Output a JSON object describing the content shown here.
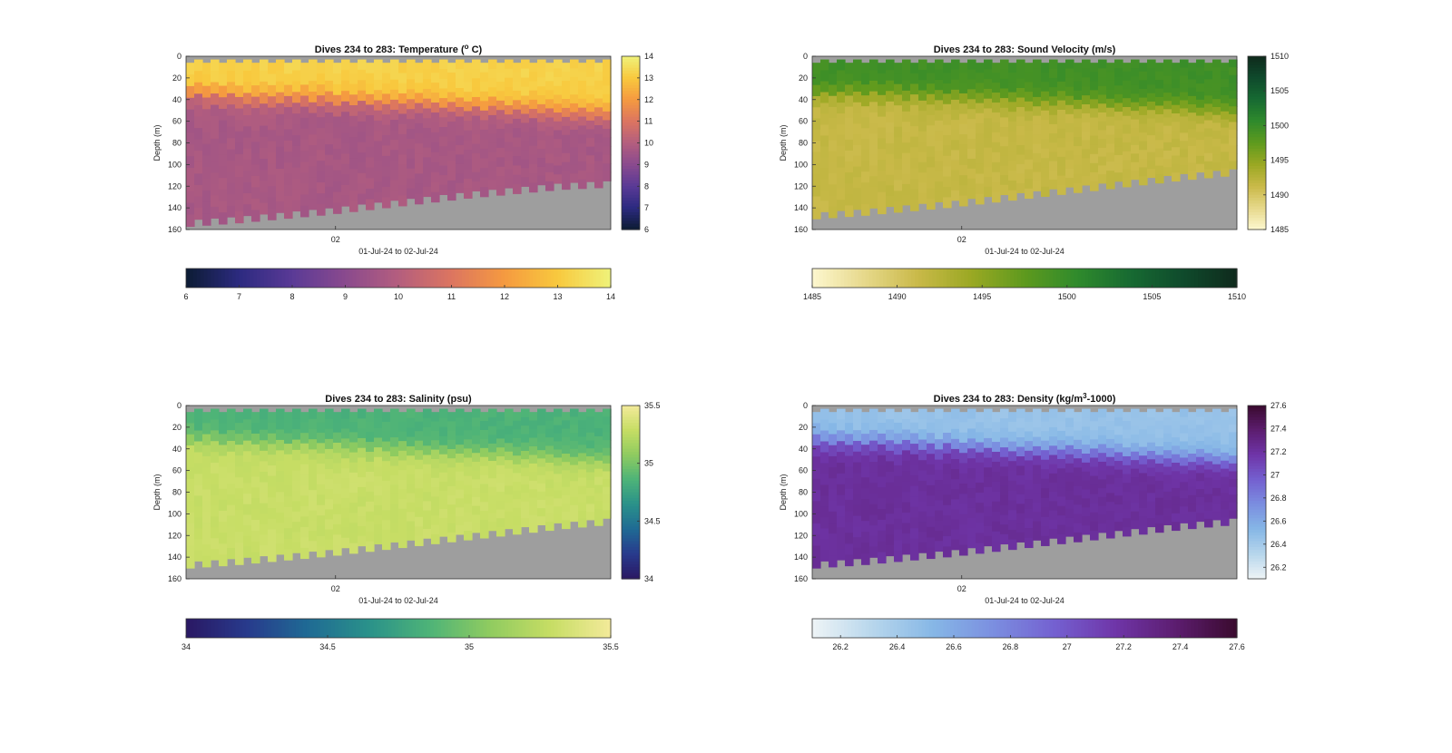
{
  "figure": {
    "background": "#ffffff",
    "nodata_color": "#9e9e9e"
  },
  "chart_data": [
    {
      "type": "heatmap",
      "id": "temperature",
      "title": "Dives 234 to 283: Temperature (° C)",
      "title_parts": [
        "Dives 234 to 283: Temperature (",
        "o",
        " C)"
      ],
      "ylabel": "Depth (m)",
      "xlabel": "01-Jul-24 to 02-Jul-24",
      "xticks": [
        "02"
      ],
      "ylim": [
        0,
        160
      ],
      "yticks": [
        0,
        20,
        40,
        60,
        80,
        100,
        120,
        140,
        160
      ],
      "colorbar_range": [
        6,
        14
      ],
      "colorbar_ticks_vertical": [
        "14",
        "13",
        "12",
        "11",
        "10",
        "9",
        "8",
        "7",
        "6"
      ],
      "colorbar_ticks_horizontal": [
        "6",
        "7",
        "8",
        "9",
        "10",
        "11",
        "12",
        "13",
        "14"
      ],
      "colormap": [
        "#0c1b33",
        "#2c2a80",
        "#5a3a96",
        "#8a4a8e",
        "#b45e7e",
        "#dc7560",
        "#f59a40",
        "#f8c93e",
        "#eff27a"
      ],
      "surface_value": 13.2,
      "deep_value": 9.7,
      "mixed_layer_depth": [
        34,
        36,
        38,
        40,
        42,
        44,
        46,
        48,
        50,
        54
      ],
      "bottom_depth": [
        157,
        154,
        150,
        146,
        141,
        136,
        131,
        127,
        123,
        121
      ]
    },
    {
      "type": "heatmap",
      "id": "sound_velocity",
      "title": "Dives 234 to 283: Sound Velocity (m/s)",
      "title_parts": [
        "Dives 234 to 283: Sound Velocity (m/s)"
      ],
      "ylabel": "Depth (m)",
      "xlabel": "01-Jul-24 to 02-Jul-24",
      "xticks": [
        "02"
      ],
      "ylim": [
        0,
        160
      ],
      "yticks": [
        0,
        20,
        40,
        60,
        80,
        100,
        120,
        140,
        160
      ],
      "colorbar_range": [
        1485,
        1510
      ],
      "colorbar_ticks_vertical": [
        "1510",
        "1505",
        "1500",
        "1495",
        "1490",
        "1485"
      ],
      "colorbar_ticks_horizontal": [
        "1485",
        "1490",
        "1495",
        "1500",
        "1505",
        "1510"
      ],
      "colormap": [
        "#fdf7cf",
        "#e6d88a",
        "#c9b948",
        "#9aa823",
        "#5e9a1e",
        "#2f8a2c",
        "#176a32",
        "#0f4a2c",
        "#0f2a1c"
      ],
      "surface_value": 1499.5,
      "deep_value": 1491.5,
      "mixed_layer_depth": [
        33,
        34,
        36,
        38,
        40,
        42,
        44,
        46,
        48,
        52
      ],
      "bottom_depth": [
        150,
        147,
        143,
        139,
        134,
        129,
        124,
        119,
        114,
        110
      ]
    },
    {
      "type": "heatmap",
      "id": "salinity",
      "title": "Dives 234 to 283: Salinity (psu)",
      "title_parts": [
        "Dives 234 to 283: Salinity (psu)"
      ],
      "ylabel": "Depth (m)",
      "xlabel": "01-Jul-24 to 02-Jul-24",
      "xticks": [
        "02"
      ],
      "ylim": [
        0,
        160
      ],
      "yticks": [
        0,
        20,
        40,
        60,
        80,
        100,
        120,
        140,
        160
      ],
      "colorbar_range": [
        34,
        35.5
      ],
      "colorbar_ticks_vertical": [
        "35.5",
        "35",
        "34.5",
        "34"
      ],
      "colorbar_ticks_horizontal": [
        "34",
        "34.5",
        "35",
        "35.5"
      ],
      "colormap": [
        "#2a1863",
        "#283a8c",
        "#1f6a94",
        "#2a918a",
        "#4db378",
        "#8fcb60",
        "#c6dd64",
        "#f3ea9a"
      ],
      "surface_value": 34.85,
      "deep_value": 35.3,
      "mixed_layer_depth": [
        32,
        34,
        36,
        38,
        40,
        42,
        44,
        46,
        48,
        50
      ],
      "bottom_depth": [
        150,
        147,
        143,
        139,
        134,
        129,
        124,
        119,
        114,
        110
      ]
    },
    {
      "type": "heatmap",
      "id": "density",
      "title": "Dives 234 to 283: Density (kg/m³-1000)",
      "title_parts": [
        "Dives 234 to 283: Density (kg/m",
        "3",
        "-1000)"
      ],
      "ylabel": "Depth (m)",
      "xlabel": "01-Jul-24 to 02-Jul-24",
      "xticks": [
        "02"
      ],
      "ylim": [
        0,
        160
      ],
      "yticks": [
        0,
        20,
        40,
        60,
        80,
        100,
        120,
        140,
        160
      ],
      "colorbar_range": [
        26.1,
        27.6
      ],
      "colorbar_ticks_vertical": [
        "27.6",
        "27.4",
        "27.2",
        "27",
        "26.8",
        "26.6",
        "26.4",
        "26.2"
      ],
      "colorbar_ticks_horizontal": [
        "26.2",
        "26.4",
        "26.6",
        "26.8",
        "27",
        "27.2",
        "27.4",
        "27.6"
      ],
      "colormap": [
        "#eef4f6",
        "#b7d6ec",
        "#86b7e6",
        "#7b8ee0",
        "#7460d0",
        "#6f35a8",
        "#5c1d6f",
        "#3a0a2e"
      ],
      "surface_value": 26.45,
      "deep_value": 27.22,
      "mixed_layer_depth": [
        32,
        34,
        36,
        38,
        40,
        42,
        44,
        46,
        48,
        50
      ],
      "bottom_depth": [
        150,
        147,
        143,
        139,
        134,
        129,
        124,
        119,
        114,
        110
      ]
    }
  ]
}
